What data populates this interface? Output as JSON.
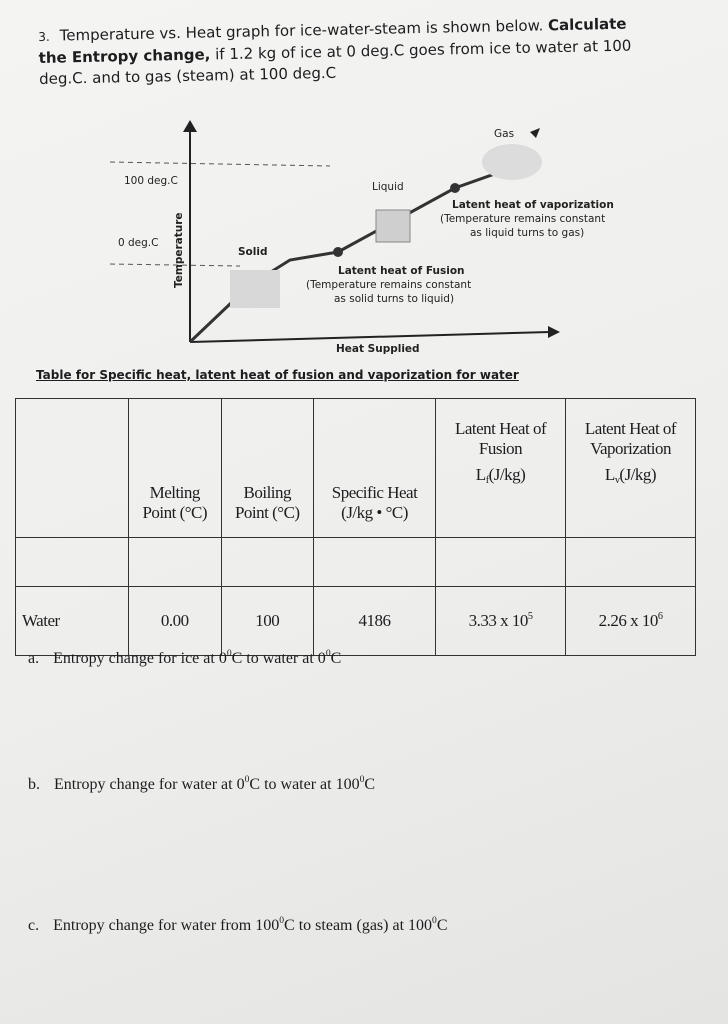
{
  "question": {
    "number": "3.",
    "intro": "Temperature vs. Heat graph for ice-water-steam is shown below. ",
    "bold": "Calculate the Entropy change,",
    "rest": " if 1.2 kg of ice at 0 deg.C goes from ice to water at 100 deg.C. and to gas (steam) at 100 deg.C"
  },
  "diagram": {
    "gas": "Gas",
    "top_temp": "100 deg.C",
    "liquid": "Liquid",
    "vaporization_title": "Latent heat of vaporization",
    "vaporization_note_1": "(Temperature remains constant",
    "vaporization_note_2": "as liquid turns to gas)",
    "bottom_temp": "0 deg.C",
    "solid": "Solid",
    "y_axis": "Temperature",
    "fusion_title": "Latent heat of Fusion",
    "fusion_note_1": "(Temperature remains constant",
    "fusion_note_2": "as solid turns to liquid)",
    "x_axis": "Heat Supplied"
  },
  "table": {
    "caption": "Table for Specific heat, latent heat of fusion and vaporization for water",
    "headers": [
      {
        "line1": "Melting",
        "line2": "Point (°C)"
      },
      {
        "line1": "Boiling",
        "line2": "Point (°C)"
      },
      {
        "line1": "Specific Heat",
        "line2": "(J/kg • °C)"
      },
      {
        "line1": "Latent Heat of",
        "line2": "Fusion",
        "symbol": "L",
        "sub": "f",
        "unit": "(J/kg)"
      },
      {
        "line1": "Latent Heat of",
        "line2": "Vaporization",
        "symbol": "L",
        "sub": "v",
        "unit": "(J/kg)"
      }
    ],
    "row": {
      "name": "Water",
      "cells": [
        {
          "text": "0.00"
        },
        {
          "text": "100"
        },
        {
          "text": "4186"
        },
        {
          "text": "3.33 x 10",
          "exp": "5"
        },
        {
          "text": "2.26 x 10",
          "exp": "6"
        }
      ]
    }
  },
  "parts": [
    {
      "label": "a.",
      "t1": "Entropy change for ice at 0",
      "s1": "0",
      "t2": "C to water at 0",
      "s2": "0",
      "t3": "C"
    },
    {
      "label": "b.",
      "t1": "Entropy change for water at 0",
      "s1": "0",
      "t2": "C to water at 100",
      "s2": "0",
      "t3": "C"
    },
    {
      "label": "c.",
      "t1": "Entropy change for water from 100",
      "s1": "0",
      "t2": "C to steam (gas) at 100",
      "s2": "0",
      "t3": "C"
    }
  ]
}
